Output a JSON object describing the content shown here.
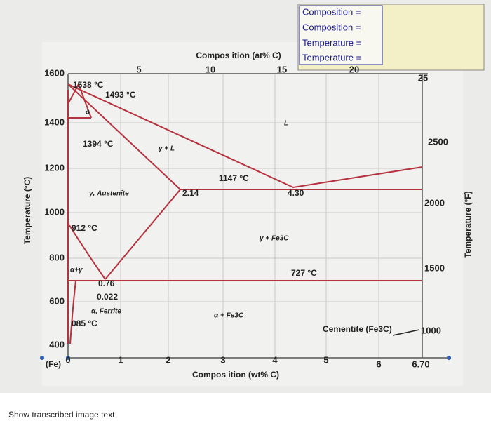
{
  "composition_box": [
    "Composition =",
    "Composition =",
    "Temperature =",
    "Temperature ="
  ],
  "top_axis": {
    "label": "Compos ition (at% C)",
    "ticks": [
      "5",
      "10",
      "15",
      "20",
      "25"
    ]
  },
  "left_axis": {
    "label": "Temperature (°C)",
    "ticks": [
      "1600",
      "1400",
      "1200",
      "1000",
      "800",
      "600",
      "400"
    ]
  },
  "right_axis": {
    "label": "Temperature (°F)",
    "ticks": [
      "2500",
      "2000",
      "1500",
      "1000"
    ]
  },
  "bottom_axis": {
    "label": "Compos ition (wt% C)",
    "origin_label": "(Fe)",
    "ticks": [
      "0",
      "1",
      "2",
      "3",
      "4",
      "5",
      "6",
      "6.70"
    ]
  },
  "annotations": [
    "1538 °C",
    "1493 °C",
    "δ",
    "1394 °C",
    "γ + L",
    "L",
    "1147 °C",
    "2.14",
    "4.30",
    "γ, Austenite",
    "912 °C",
    "γ + Fe3C",
    "α+γ",
    "727 °C",
    "0.76",
    "0.022",
    "α, Ferrite",
    "085 °C",
    "α + Fe3C",
    "Cementite (Fe3C)"
  ],
  "footer": "Show transcribed image text"
}
